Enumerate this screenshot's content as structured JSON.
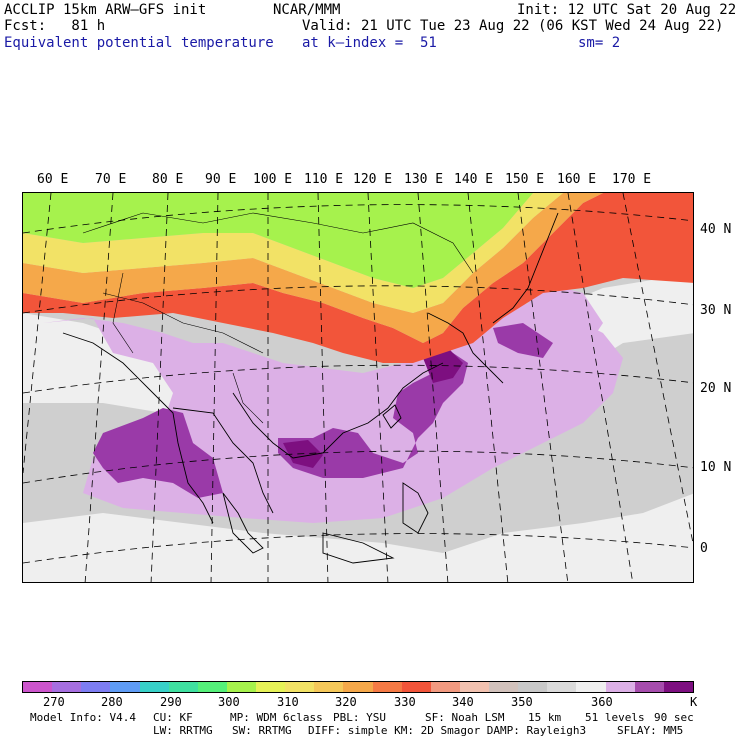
{
  "header": {
    "model": "ACCLIP 15km ARW–GFS init",
    "forecast": "Fcst:   81 h",
    "field": "Equivalent potential temperature",
    "center": "NCAR/MMM",
    "init": "Init: 12 UTC Sat 20 Aug 22",
    "valid": "Valid: 21 UTC Tue 23 Aug 22 (06 KST Wed 24 Aug 22)",
    "level": "at k–index =  51",
    "smoothing": "sm= 2"
  },
  "map": {
    "lon_labels": [
      "60 E",
      "70 E",
      "80 E",
      "90 E",
      "100 E",
      "110 E",
      "120 E",
      "130 E",
      "140 E",
      "150 E",
      "160 E",
      "170 E"
    ],
    "lat_labels": [
      "40 N",
      "30 N",
      "20 N",
      "10 N",
      "0"
    ],
    "colors": {
      "cold": "#a6f24d",
      "cool": "#f2e266",
      "warm": "#f5a84a",
      "hot": "#f2553a",
      "neutral": "#cfcfcf",
      "light": "#efefef",
      "lilac": "#dcb0e6",
      "purple": "#9a3aa8",
      "deep": "#7d0f80"
    }
  },
  "colorbar": {
    "colors": [
      "#cc55cc",
      "#a66fe0",
      "#7d7df2",
      "#5f9cf5",
      "#38d1c8",
      "#3fe0a0",
      "#55f07a",
      "#a6f24d",
      "#e6f258",
      "#f2e266",
      "#f5c85a",
      "#f5a84a",
      "#f57a45",
      "#f2553a",
      "#f29a80",
      "#f2c2b0",
      "#d2c2bc",
      "#c8c8c8",
      "#dadada",
      "#efefef",
      "#dcb0e6",
      "#a64dad",
      "#7d0f80"
    ],
    "ticks": [
      "270",
      "280",
      "290",
      "300",
      "310",
      "320",
      "330",
      "340",
      "350",
      "360"
    ],
    "unit": "K"
  },
  "footer": {
    "line1": [
      "Model Info: V4.4",
      "CU: KF",
      "MP: WDM 6class",
      "PBL: YSU",
      "SF: Noah LSM",
      "15 km",
      "51 levels",
      "90 sec"
    ],
    "line2": [
      "LW: RRTMG",
      "SW: RRTMG",
      "DIFF: simple KM: 2D Smagor DAMP: Rayleigh3",
      "SFLAY: MM5"
    ]
  }
}
